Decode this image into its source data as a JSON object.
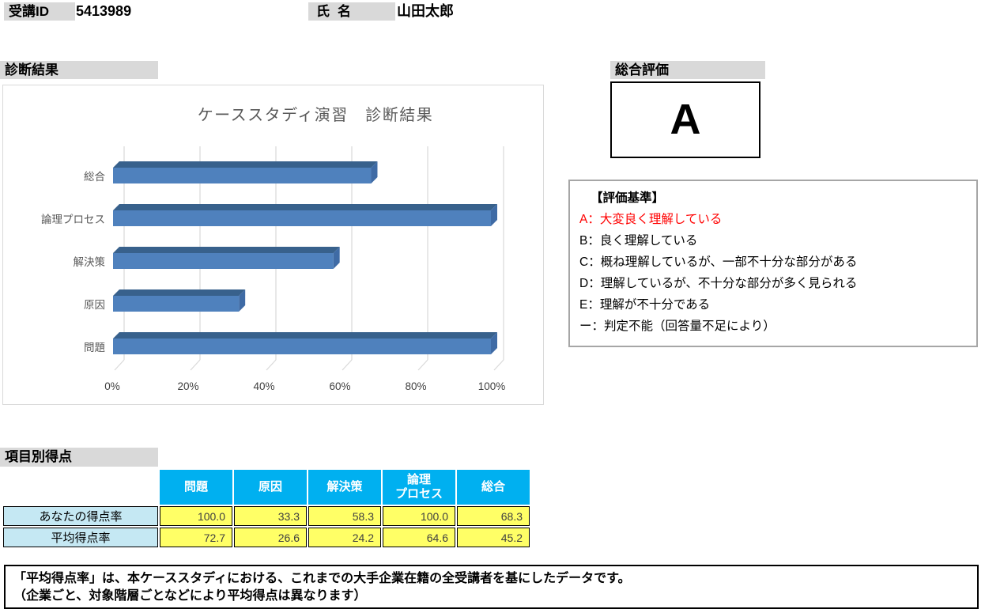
{
  "header": {
    "student_id_label": "受講ID",
    "student_id_value": "5413989",
    "name_label": "氏名",
    "name_value": "山田太郎"
  },
  "section_titles": {
    "diagnosis": "診断結果",
    "overall_rating": "総合評価",
    "item_scores": "項目別得点"
  },
  "overall_rating": {
    "grade": "A"
  },
  "rating_criteria": {
    "heading": "【評価基準】",
    "items": [
      {
        "text": "A：大変良く理解している",
        "color": "#FF0000"
      },
      {
        "text": "B：良く理解している",
        "color": "#000000"
      },
      {
        "text": "C：概ね理解しているが、一部不十分な部分がある",
        "color": "#000000"
      },
      {
        "text": "D：理解しているが、不十分な部分が多く見られる",
        "color": "#000000"
      },
      {
        "text": "E：理解が不十分である",
        "color": "#000000"
      },
      {
        "text": "ー：判定不能（回答量不足により）",
        "color": "#000000"
      }
    ]
  },
  "chart_data": {
    "type": "bar",
    "orientation": "horizontal",
    "style": "3d",
    "title": "ケーススタディ演習　診断結果",
    "categories_top_to_bottom": [
      "総合",
      "論理プロセス",
      "解決策",
      "原因",
      "問題"
    ],
    "values_percent": [
      68.3,
      100.0,
      58.3,
      33.3,
      100.0
    ],
    "x_ticks": [
      "0%",
      "20%",
      "40%",
      "60%",
      "80%",
      "100%"
    ],
    "x_range_percent": [
      0,
      100
    ],
    "grid": true,
    "legend": false,
    "bar_color": "#4F81BD",
    "bar_top_color": "#38618C",
    "bar_side_color": "#3F6BA5",
    "gridline_color": "#D9D9D9",
    "title_color": "#595959",
    "category_label_color": "#595959",
    "tick_label_color": "#404040"
  },
  "score_table": {
    "columns": [
      "問題",
      "原因",
      "解決策",
      "論理\nプロセス",
      "総合"
    ],
    "rows": [
      {
        "label": "あなたの得点率",
        "values": [
          "100.0",
          "33.3",
          "58.3",
          "100.0",
          "68.3"
        ]
      },
      {
        "label": "平均得点率",
        "values": [
          "72.7",
          "26.6",
          "24.2",
          "64.6",
          "45.2"
        ]
      }
    ],
    "header_bg": "#00B0F0",
    "row_label_bg": "#C5E8F3",
    "value_bg": "#FFFF66"
  },
  "note": {
    "line1": "「平均得点率」は、本ケーススタディにおける、これまでの大手企業在籍の全受講者を基にしたデータです。",
    "line2": "（企業ごと、対象階層ごとなどにより平均得点は異なります）"
  }
}
